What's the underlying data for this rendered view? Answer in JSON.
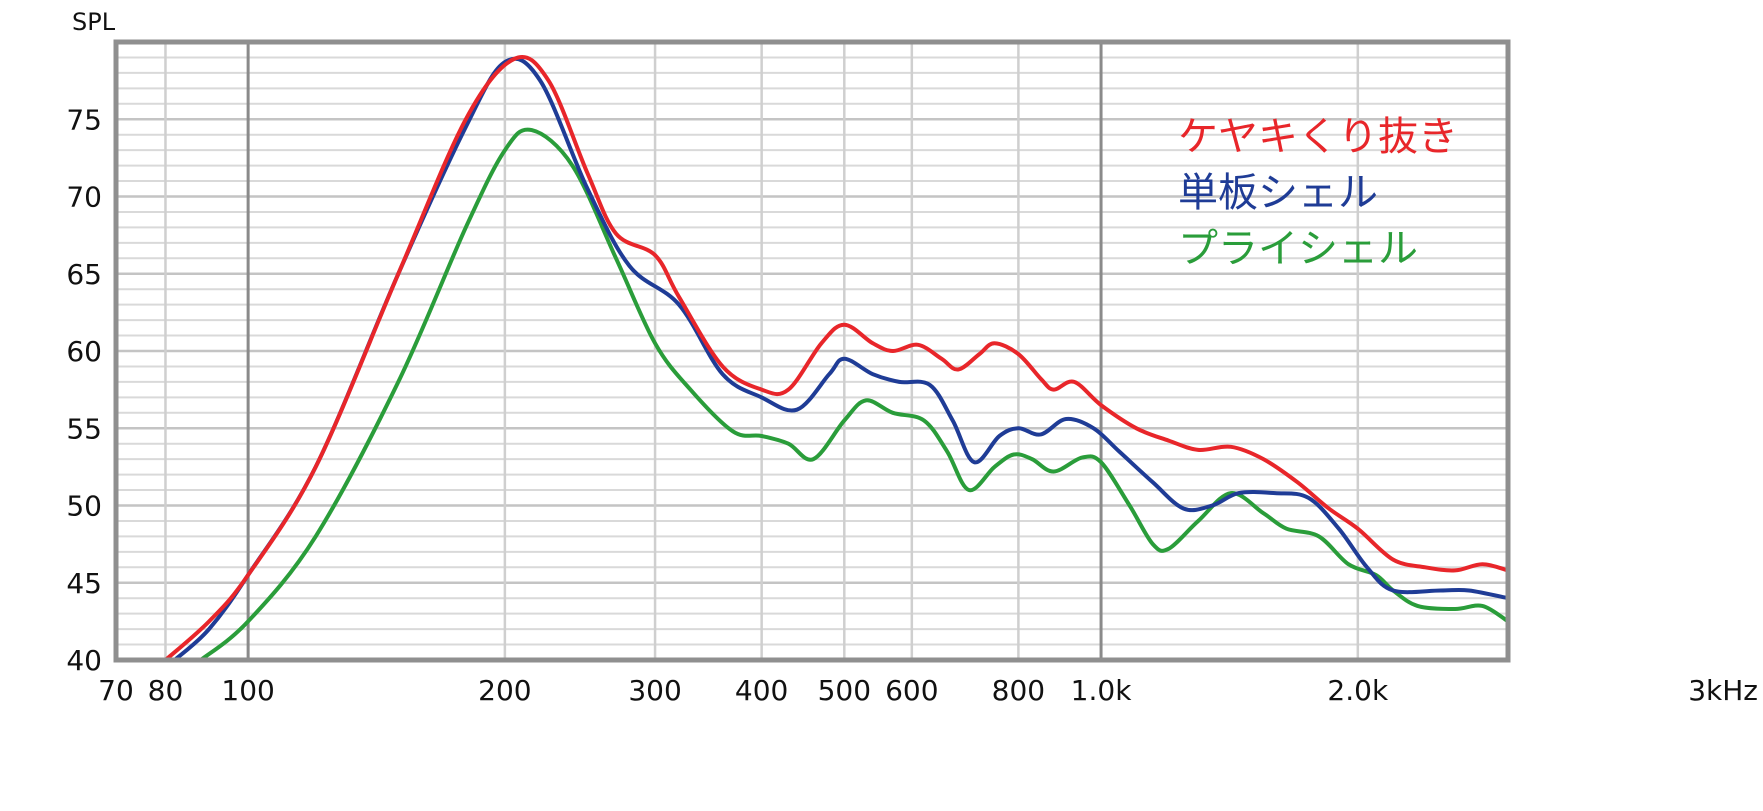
{
  "chart_data": {
    "type": "line",
    "title": "",
    "ylabel": "SPL",
    "xlabel": "",
    "xscale": "log",
    "xlim": [
      70,
      3000
    ],
    "ylim": [
      40,
      80
    ],
    "x_ticks": [
      {
        "value": 70,
        "label": "70"
      },
      {
        "value": 80,
        "label": "80"
      },
      {
        "value": 100,
        "label": "100"
      },
      {
        "value": 200,
        "label": "200"
      },
      {
        "value": 300,
        "label": "300"
      },
      {
        "value": 400,
        "label": "400"
      },
      {
        "value": 500,
        "label": "500"
      },
      {
        "value": 600,
        "label": "600"
      },
      {
        "value": 800,
        "label": "800"
      },
      {
        "value": 1000,
        "label": "1.0k"
      },
      {
        "value": 2000,
        "label": "2.0k"
      },
      {
        "value": 3000,
        "label": "3kHz"
      }
    ],
    "y_ticks": [
      {
        "value": 40,
        "label": "40"
      },
      {
        "value": 45,
        "label": "45"
      },
      {
        "value": 50,
        "label": "50"
      },
      {
        "value": 55,
        "label": "55"
      },
      {
        "value": 60,
        "label": "60"
      },
      {
        "value": 65,
        "label": "65"
      },
      {
        "value": 70,
        "label": "70"
      },
      {
        "value": 75,
        "label": "75"
      }
    ],
    "grid": true,
    "legend_position": "top-right",
    "series": [
      {
        "name": "ケヤキくり抜き",
        "color": "#e8262a",
        "points": [
          [
            80,
            40
          ],
          [
            90,
            42.5
          ],
          [
            100,
            45.5
          ],
          [
            120,
            52.5
          ],
          [
            150,
            65
          ],
          [
            180,
            75
          ],
          [
            205,
            78.9
          ],
          [
            225,
            77.5
          ],
          [
            250,
            71.5
          ],
          [
            270,
            67.6
          ],
          [
            300,
            66.2
          ],
          [
            320,
            63.5
          ],
          [
            360,
            59
          ],
          [
            400,
            57.5
          ],
          [
            430,
            57.5
          ],
          [
            470,
            60.5
          ],
          [
            500,
            61.7
          ],
          [
            540,
            60.5
          ],
          [
            570,
            60
          ],
          [
            610,
            60.4
          ],
          [
            650,
            59.5
          ],
          [
            680,
            58.8
          ],
          [
            720,
            59.8
          ],
          [
            750,
            60.5
          ],
          [
            800,
            59.8
          ],
          [
            850,
            58.2
          ],
          [
            880,
            57.5
          ],
          [
            930,
            58
          ],
          [
            1000,
            56.5
          ],
          [
            1100,
            55
          ],
          [
            1200,
            54.2
          ],
          [
            1300,
            53.6
          ],
          [
            1420,
            53.8
          ],
          [
            1550,
            53
          ],
          [
            1700,
            51.5
          ],
          [
            1850,
            49.8
          ],
          [
            2000,
            48.5
          ],
          [
            2200,
            46.5
          ],
          [
            2400,
            46
          ],
          [
            2600,
            45.8
          ],
          [
            2800,
            46.2
          ],
          [
            3000,
            45.8
          ]
        ]
      },
      {
        "name": "単板シェル",
        "color": "#1f3c96",
        "points": [
          [
            82,
            40
          ],
          [
            90,
            42
          ],
          [
            100,
            45.5
          ],
          [
            120,
            52.5
          ],
          [
            150,
            65
          ],
          [
            180,
            74.5
          ],
          [
            200,
            78.7
          ],
          [
            220,
            77.5
          ],
          [
            250,
            70.5
          ],
          [
            280,
            65.5
          ],
          [
            320,
            63
          ],
          [
            360,
            58.5
          ],
          [
            400,
            57
          ],
          [
            440,
            56.2
          ],
          [
            480,
            58.5
          ],
          [
            500,
            59.5
          ],
          [
            540,
            58.5
          ],
          [
            580,
            58
          ],
          [
            630,
            57.8
          ],
          [
            670,
            55.5
          ],
          [
            710,
            52.8
          ],
          [
            760,
            54.5
          ],
          [
            800,
            55
          ],
          [
            850,
            54.6
          ],
          [
            910,
            55.6
          ],
          [
            980,
            55
          ],
          [
            1050,
            53.5
          ],
          [
            1150,
            51.5
          ],
          [
            1250,
            49.8
          ],
          [
            1350,
            50
          ],
          [
            1450,
            50.8
          ],
          [
            1600,
            50.8
          ],
          [
            1750,
            50.5
          ],
          [
            1900,
            48.5
          ],
          [
            2050,
            46
          ],
          [
            2200,
            44.5
          ],
          [
            2500,
            44.5
          ],
          [
            2700,
            44.5
          ],
          [
            3000,
            44
          ]
        ]
      },
      {
        "name": "プライシェル",
        "color": "#2a9d3a",
        "points": [
          [
            88,
            40
          ],
          [
            100,
            42.5
          ],
          [
            120,
            48
          ],
          [
            150,
            58
          ],
          [
            180,
            68
          ],
          [
            200,
            73
          ],
          [
            215,
            74.3
          ],
          [
            240,
            72
          ],
          [
            270,
            66
          ],
          [
            300,
            60.5
          ],
          [
            330,
            57.5
          ],
          [
            370,
            54.8
          ],
          [
            400,
            54.5
          ],
          [
            430,
            54
          ],
          [
            460,
            53
          ],
          [
            500,
            55.5
          ],
          [
            530,
            56.8
          ],
          [
            570,
            56
          ],
          [
            620,
            55.5
          ],
          [
            660,
            53.5
          ],
          [
            700,
            51
          ],
          [
            750,
            52.5
          ],
          [
            790,
            53.3
          ],
          [
            830,
            53
          ],
          [
            880,
            52.2
          ],
          [
            950,
            53.1
          ],
          [
            1000,
            52.8
          ],
          [
            1080,
            50
          ],
          [
            1150,
            47.5
          ],
          [
            1200,
            47.2
          ],
          [
            1300,
            49
          ],
          [
            1420,
            50.8
          ],
          [
            1550,
            49.5
          ],
          [
            1650,
            48.5
          ],
          [
            1800,
            48
          ],
          [
            1950,
            46.2
          ],
          [
            2100,
            45.5
          ],
          [
            2200,
            44.5
          ],
          [
            2350,
            43.5
          ],
          [
            2600,
            43.3
          ],
          [
            2800,
            43.5
          ],
          [
            3000,
            42.5
          ]
        ]
      }
    ]
  }
}
